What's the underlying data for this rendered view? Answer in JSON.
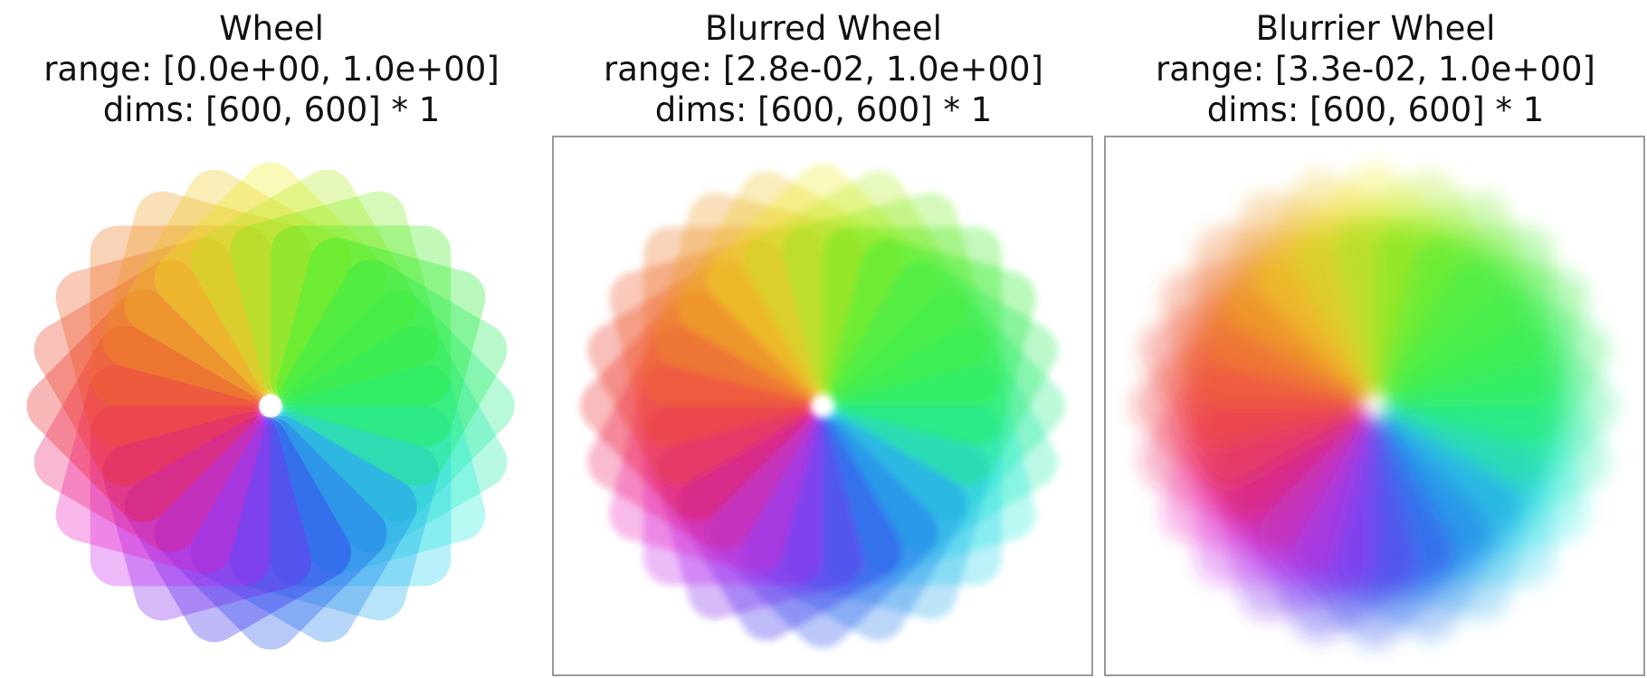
{
  "panels": [
    {
      "title": "Wheel",
      "range": "range: [0.0e+00, 1.0e+00]",
      "dims": "dims: [600, 600] * 1"
    },
    {
      "title": "Blurred Wheel",
      "range": "range: [2.8e-02, 1.0e+00]",
      "dims": "dims: [600, 600] * 1"
    },
    {
      "title": "Blurrier Wheel",
      "range": "range: [3.3e-02, 1.0e+00]",
      "dims": "dims: [600, 600] * 1"
    }
  ]
}
